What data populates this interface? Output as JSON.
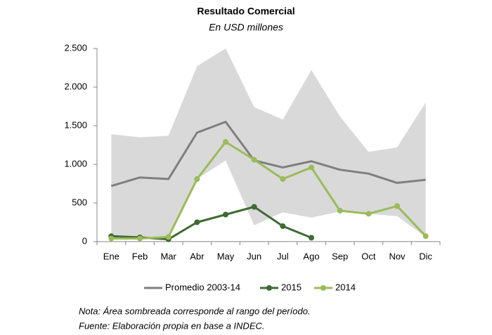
{
  "chart_data": {
    "type": "line",
    "title": "Resultado Comercial",
    "subtitle": "En USD millones",
    "categories": [
      "Ene",
      "Feb",
      "Mar",
      "Abr",
      "May",
      "Jun",
      "Jul",
      "Ago",
      "Sep",
      "Oct",
      "Nov",
      "Dic"
    ],
    "range_band": {
      "color": "#d9d9d9",
      "upper": [
        1390,
        1350,
        1370,
        2270,
        2500,
        1740,
        1580,
        2220,
        1620,
        1160,
        1220,
        1800
      ],
      "lower": [
        40,
        40,
        40,
        810,
        1050,
        210,
        380,
        310,
        390,
        360,
        330,
        60
      ]
    },
    "series": [
      {
        "name": "Promedio 2003-14",
        "color": "#7f7f7f",
        "marker": false,
        "values": [
          720,
          830,
          810,
          1410,
          1550,
          1050,
          960,
          1040,
          930,
          880,
          760,
          800
        ]
      },
      {
        "name": "2015",
        "color": "#3e6b34",
        "marker": true,
        "values": [
          70,
          55,
          30,
          250,
          350,
          450,
          200,
          50,
          null,
          null,
          null,
          null
        ]
      },
      {
        "name": "2014",
        "color": "#9bbb59",
        "marker": true,
        "values": [
          40,
          40,
          60,
          810,
          1290,
          1060,
          810,
          960,
          400,
          360,
          460,
          70
        ]
      }
    ],
    "ylim": [
      0,
      2500
    ],
    "yticks": [
      0,
      500,
      {
        "value": 1000,
        "label": "1.000"
      },
      {
        "value": 1500,
        "label": "1.500"
      },
      {
        "value": 2000,
        "label": "2.000"
      },
      {
        "value": 2500,
        "label": "2.500"
      }
    ],
    "grid": false,
    "legend": "bottom",
    "notes": [
      "Nota: Área sombreada corresponde al rango del período.",
      "Fuente: Elaboración propia en base a INDEC."
    ]
  }
}
